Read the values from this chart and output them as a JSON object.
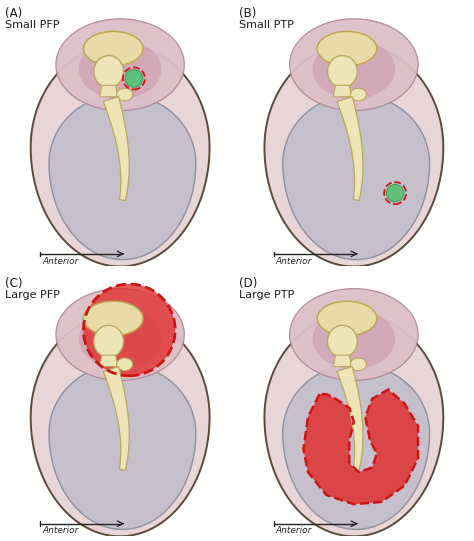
{
  "panels": [
    {
      "label": "(A)",
      "subtitle": "Small PFP",
      "perf_type": "small_pfp"
    },
    {
      "label": "(B)",
      "subtitle": "Small PTP",
      "perf_type": "small_ptp"
    },
    {
      "label": "(C)",
      "subtitle": "Large PFP",
      "perf_type": "large_pfp"
    },
    {
      "label": "(D)",
      "subtitle": "Large PTP",
      "perf_type": "large_ptp"
    }
  ],
  "colors": {
    "bg": "#ffffff",
    "outer_fill": "#e8d5d8",
    "outer_edge": "#5a4a3a",
    "outer_edge2": "#888880",
    "pt_fill": "#c5c0cc",
    "pt_edge": "#9090a0",
    "pf_fill": "#ddbfc8",
    "pf_edge": "#b08898",
    "pf_inner_fill": "#cc9aaa",
    "malleus_fill": "#ede5b8",
    "malleus_edge": "#b8a860",
    "ossicle_fill": "#e8dba8",
    "ossicle_edge": "#c0a850",
    "green_fill": "#60c07a",
    "green_edge": "#40a060",
    "red_dash": "#cc1515",
    "red_perf_fill": "#e03030",
    "label_color": "#1a1a1a",
    "ant_color": "#222222",
    "scalebar_color": "#222222"
  },
  "figsize": [
    4.74,
    5.41
  ],
  "dpi": 100
}
